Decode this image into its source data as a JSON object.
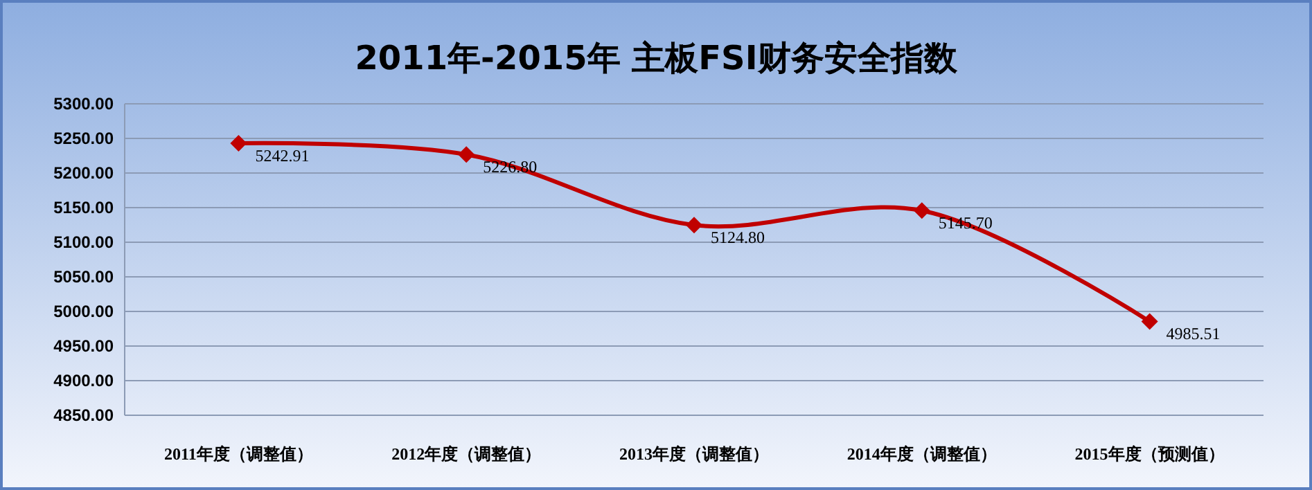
{
  "chart_data": {
    "type": "line",
    "title": "2011年-2015年 主板FSI财务安全指数",
    "categories": [
      "2011年度（调整值）",
      "2012年度（调整值）",
      "2013年度（调整值）",
      "2014年度（调整值）",
      "2015年度（预测值）"
    ],
    "series": [
      {
        "color": "#c00000",
        "values": [
          5242.91,
          5226.8,
          5124.8,
          5145.7,
          4985.51
        ],
        "value_labels": [
          "5242.91",
          "5226.80",
          "5124.80",
          "5145.70",
          "4985.51"
        ]
      }
    ],
    "ylim": [
      4850,
      5300
    ],
    "yticks": [
      {
        "value": 4850,
        "label": "4850.00"
      },
      {
        "value": 4900,
        "label": "4900.00"
      },
      {
        "value": 4950,
        "label": "4950.00"
      },
      {
        "value": 5000,
        "label": "5000.00"
      },
      {
        "value": 5050,
        "label": "5050.00"
      },
      {
        "value": 5100,
        "label": "5100.00"
      },
      {
        "value": 5150,
        "label": "5150.00"
      },
      {
        "value": 5200,
        "label": "5200.00"
      },
      {
        "value": 5250,
        "label": "5250.00"
      },
      {
        "value": 5300,
        "label": "5300.00"
      }
    ],
    "grid": "y",
    "marker": "diamond",
    "line_style": "solid"
  }
}
